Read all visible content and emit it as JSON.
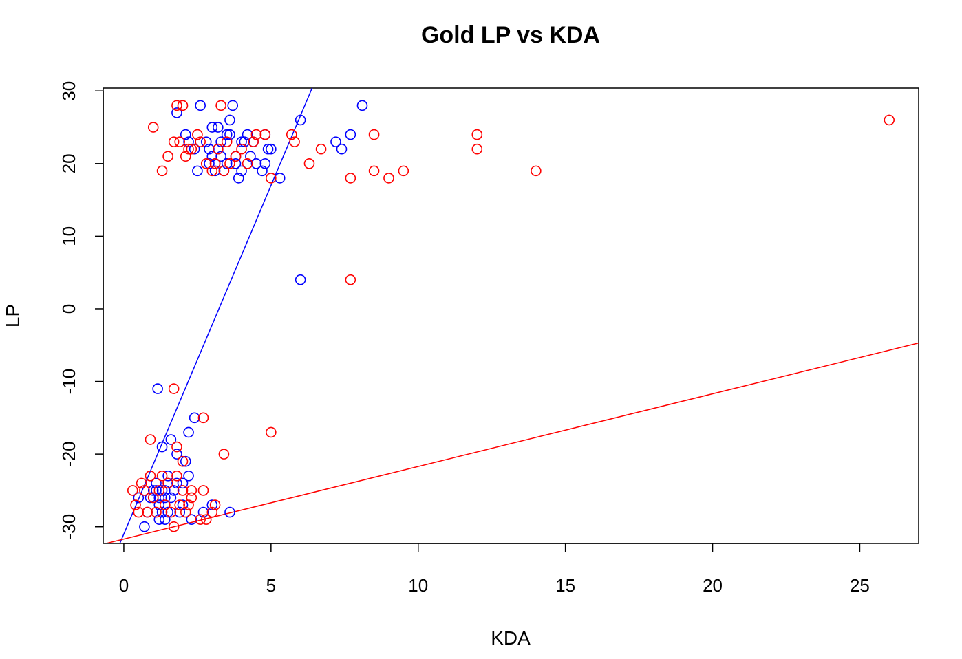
{
  "chart_data": {
    "type": "scatter",
    "title": "Gold LP vs KDA",
    "xlabel": "KDA",
    "ylabel": "LP",
    "xlim": [
      -0.7,
      27
    ],
    "ylim": [
      -32.3,
      30.4
    ],
    "x_ticks": [
      0,
      5,
      10,
      15,
      20,
      25
    ],
    "y_ticks": [
      -30,
      -20,
      -10,
      0,
      10,
      20,
      30
    ],
    "grid": false,
    "legend": "none",
    "series": [
      {
        "color": "#0000ff",
        "marker": "open-circle",
        "points": [
          [
            0.5,
            -26
          ],
          [
            0.7,
            -30
          ],
          [
            0.8,
            -28
          ],
          [
            0.9,
            -26
          ],
          [
            1.0,
            -26
          ],
          [
            1.0,
            -25
          ],
          [
            1.1,
            -24
          ],
          [
            1.1,
            -25
          ],
          [
            1.2,
            -27
          ],
          [
            1.2,
            -29
          ],
          [
            1.2,
            -26
          ],
          [
            1.3,
            -28
          ],
          [
            1.3,
            -25
          ],
          [
            1.3,
            -19
          ],
          [
            1.4,
            -29
          ],
          [
            1.4,
            -26
          ],
          [
            1.4,
            -25
          ],
          [
            1.5,
            -23
          ],
          [
            1.5,
            -24
          ],
          [
            1.5,
            -28
          ],
          [
            1.6,
            -26
          ],
          [
            1.6,
            -18
          ],
          [
            1.7,
            -25
          ],
          [
            1.8,
            -24
          ],
          [
            1.8,
            -20
          ],
          [
            1.9,
            -28
          ],
          [
            2.0,
            -24
          ],
          [
            2.0,
            -27
          ],
          [
            2.1,
            -21
          ],
          [
            2.2,
            -23
          ],
          [
            2.2,
            -17
          ],
          [
            2.3,
            -29
          ],
          [
            2.4,
            -15
          ],
          [
            2.7,
            -28
          ],
          [
            3.0,
            -27
          ],
          [
            3.6,
            -28
          ],
          [
            1.15,
            -11
          ],
          [
            1.8,
            27
          ],
          [
            2.1,
            24
          ],
          [
            2.2,
            23
          ],
          [
            2.4,
            22
          ],
          [
            2.5,
            19
          ],
          [
            2.6,
            28
          ],
          [
            2.8,
            23
          ],
          [
            2.9,
            22
          ],
          [
            2.9,
            20
          ],
          [
            3.0,
            21
          ],
          [
            3.0,
            25
          ],
          [
            3.1,
            19
          ],
          [
            3.1,
            20
          ],
          [
            3.2,
            22
          ],
          [
            3.2,
            25
          ],
          [
            3.3,
            23
          ],
          [
            3.3,
            21
          ],
          [
            3.4,
            19
          ],
          [
            3.5,
            24
          ],
          [
            3.5,
            20
          ],
          [
            3.6,
            26
          ],
          [
            3.6,
            24
          ],
          [
            3.7,
            28
          ],
          [
            3.8,
            21
          ],
          [
            3.8,
            20
          ],
          [
            3.9,
            18
          ],
          [
            4.0,
            23
          ],
          [
            4.0,
            19
          ],
          [
            4.1,
            23
          ],
          [
            4.2,
            24
          ],
          [
            4.3,
            21
          ],
          [
            4.4,
            23
          ],
          [
            4.5,
            20
          ],
          [
            4.7,
            19
          ],
          [
            4.8,
            24
          ],
          [
            4.8,
            20
          ],
          [
            4.9,
            22
          ],
          [
            5.0,
            22
          ],
          [
            5.3,
            18
          ],
          [
            6.0,
            26
          ],
          [
            7.2,
            23
          ],
          [
            7.4,
            22
          ],
          [
            7.7,
            24
          ],
          [
            8.1,
            28
          ],
          [
            6.0,
            4
          ]
        ],
        "trend": {
          "intercept": -31.0,
          "slope": 9.6
        }
      },
      {
        "color": "#ff0000",
        "marker": "open-circle",
        "points": [
          [
            0.3,
            -25
          ],
          [
            0.4,
            -27
          ],
          [
            0.5,
            -28
          ],
          [
            0.6,
            -24
          ],
          [
            0.7,
            -25
          ],
          [
            0.8,
            -28
          ],
          [
            0.9,
            -23
          ],
          [
            0.9,
            -18
          ],
          [
            1.0,
            -26
          ],
          [
            1.1,
            -28
          ],
          [
            1.2,
            -25
          ],
          [
            1.3,
            -23
          ],
          [
            1.4,
            -27
          ],
          [
            1.5,
            -24
          ],
          [
            1.6,
            -28
          ],
          [
            1.7,
            -30
          ],
          [
            1.7,
            -11
          ],
          [
            1.8,
            -19
          ],
          [
            1.8,
            -23
          ],
          [
            1.9,
            -27
          ],
          [
            2.0,
            -21
          ],
          [
            2.0,
            -25
          ],
          [
            2.1,
            -28
          ],
          [
            2.2,
            -27
          ],
          [
            2.3,
            -25
          ],
          [
            2.3,
            -26
          ],
          [
            2.6,
            -29
          ],
          [
            2.7,
            -15
          ],
          [
            2.7,
            -25
          ],
          [
            2.8,
            -29
          ],
          [
            3.0,
            -28
          ],
          [
            3.1,
            -27
          ],
          [
            3.4,
            -20
          ],
          [
            5.0,
            -17
          ],
          [
            1.0,
            25
          ],
          [
            1.3,
            19
          ],
          [
            1.5,
            21
          ],
          [
            1.7,
            23
          ],
          [
            1.8,
            28
          ],
          [
            1.9,
            23
          ],
          [
            2.0,
            28
          ],
          [
            2.1,
            21
          ],
          [
            2.2,
            22
          ],
          [
            2.3,
            22
          ],
          [
            2.5,
            24
          ],
          [
            2.6,
            23
          ],
          [
            2.8,
            20
          ],
          [
            3.0,
            19
          ],
          [
            3.1,
            20
          ],
          [
            3.2,
            22
          ],
          [
            3.3,
            28
          ],
          [
            3.4,
            19
          ],
          [
            3.5,
            23
          ],
          [
            3.6,
            20
          ],
          [
            3.8,
            21
          ],
          [
            4.0,
            22
          ],
          [
            4.2,
            20
          ],
          [
            4.4,
            23
          ],
          [
            4.5,
            24
          ],
          [
            4.8,
            24
          ],
          [
            5.0,
            18
          ],
          [
            5.7,
            24
          ],
          [
            5.8,
            23
          ],
          [
            6.3,
            20
          ],
          [
            6.7,
            22
          ],
          [
            7.7,
            18
          ],
          [
            8.5,
            24
          ],
          [
            8.5,
            19
          ],
          [
            9.0,
            18
          ],
          [
            9.5,
            19
          ],
          [
            12.0,
            24
          ],
          [
            12.0,
            22
          ],
          [
            14.0,
            19
          ],
          [
            26.0,
            26
          ],
          [
            7.7,
            4
          ]
        ],
        "trend": {
          "intercept": -31.7,
          "slope": 1.0
        }
      }
    ]
  }
}
